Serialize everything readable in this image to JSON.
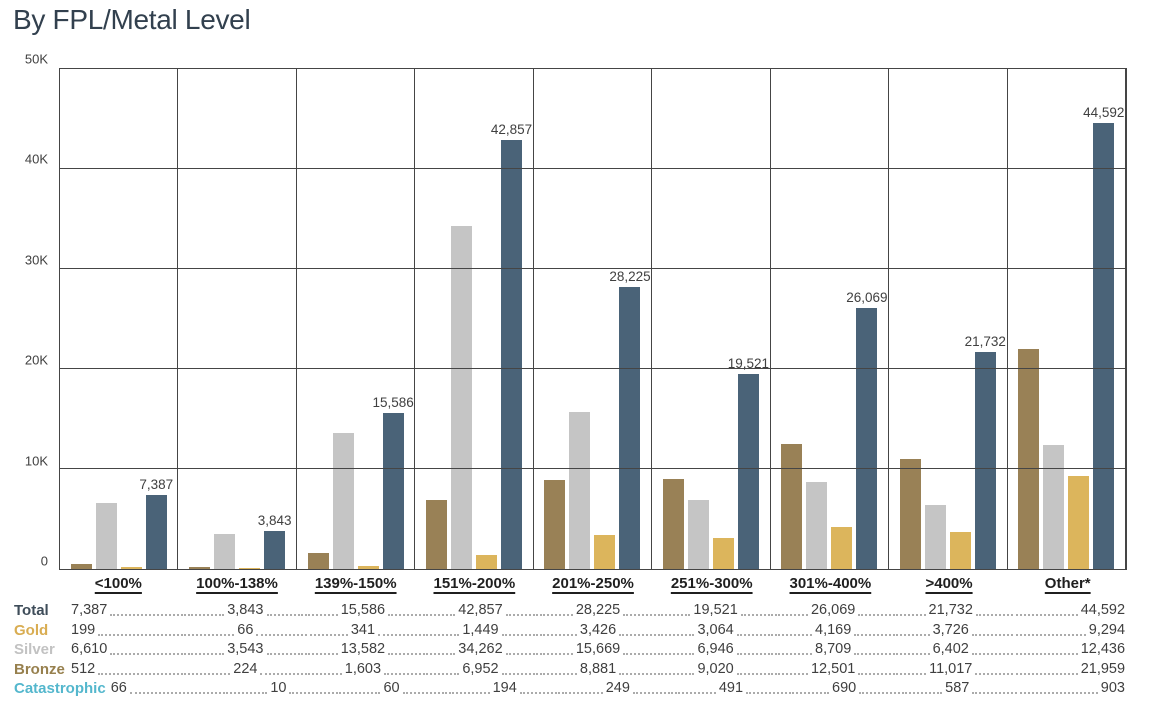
{
  "title": "By FPL/Metal Level",
  "colors": {
    "grid": "#454545",
    "title": "#32404e",
    "text": "#404040"
  },
  "chart_data": {
    "type": "bar",
    "title": "By FPL/Metal Level",
    "categories": [
      "<100%",
      "100%-138%",
      "139%-150%",
      "151%-200%",
      "201%-250%",
      "251%-300%",
      "301%-400%",
      ">400%",
      "Other*"
    ],
    "series": [
      {
        "name": "Total",
        "color": "#4a6378",
        "label_color": "#3e4c59",
        "values": [
          7387,
          3843,
          15586,
          42857,
          28225,
          19521,
          26069,
          21732,
          44592
        ]
      },
      {
        "name": "Gold",
        "color": "#dcb55c",
        "label_color": "#d9ad52",
        "values": [
          199,
          66,
          341,
          1449,
          3426,
          3064,
          4169,
          3726,
          9294
        ]
      },
      {
        "name": "Silver",
        "color": "#c5c5c5",
        "label_color": "#c2c2c2",
        "values": [
          6610,
          3543,
          13582,
          34262,
          15669,
          6946,
          8709,
          6402,
          12436
        ]
      },
      {
        "name": "Bronze",
        "color": "#998156",
        "label_color": "#97804e",
        "values": [
          512,
          224,
          1603,
          6952,
          8881,
          9020,
          12501,
          11017,
          21959
        ]
      },
      {
        "name": "Catastrophic",
        "color": "#54b7cd",
        "label_color": "#54b7cd",
        "values": [
          66,
          10,
          60,
          194,
          249,
          491,
          690,
          587,
          903
        ]
      }
    ],
    "bar_render_order": [
      "Bronze",
      "Silver",
      "Gold",
      "Total"
    ],
    "data_labels_series": "Total",
    "data_labels": [
      "7,387",
      "3,843",
      "15,586",
      "42,857",
      "28,225",
      "19,521",
      "26,069",
      "21,732",
      "44,592"
    ],
    "y_axis": {
      "ticks": [
        "50K",
        "40K",
        "30K",
        "20K",
        "10K",
        "0"
      ],
      "max": 50000,
      "min": 0,
      "grid": true,
      "gridlines_over_bars": true
    },
    "legend_position": "table-row-headers"
  },
  "table": {
    "note": "rows follow chart_data.series order: Total, Gold, Silver, Bronze, Catastrophic"
  }
}
